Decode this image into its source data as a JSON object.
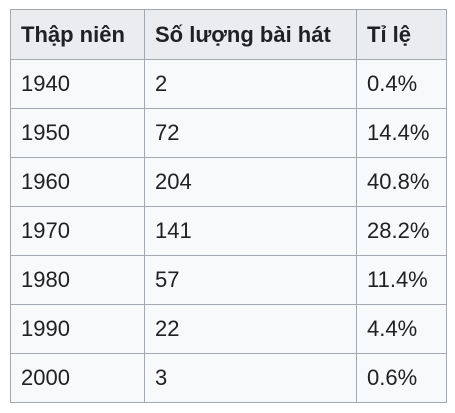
{
  "table": {
    "headers": [
      "Thập niên",
      "Số lượng bài hát",
      "Tỉ lệ"
    ],
    "rows": [
      [
        "1940",
        "2",
        "0.4%"
      ],
      [
        "1950",
        "72",
        "14.4%"
      ],
      [
        "1960",
        "204",
        "40.8%"
      ],
      [
        "1970",
        "141",
        "28.2%"
      ],
      [
        "1980",
        "57",
        "11.4%"
      ],
      [
        "1990",
        "22",
        "4.4%"
      ],
      [
        "2000",
        "3",
        "0.6%"
      ]
    ]
  },
  "colors": {
    "header_bg": "#eaecf0",
    "cell_bg": "#f8f9fa",
    "border": "#a2a9b1",
    "text": "#202122"
  }
}
